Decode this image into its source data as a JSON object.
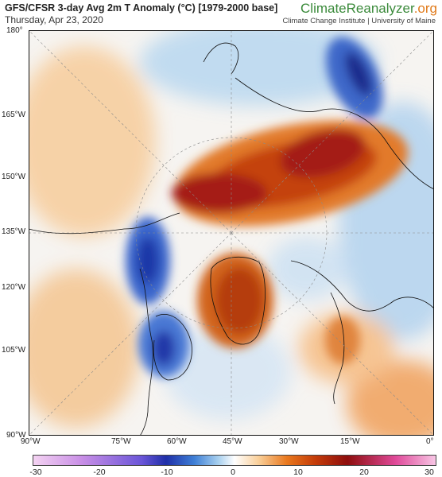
{
  "header": {
    "title": "GFS/CFSR 3-day Avg 2m T Anomaly (°C) [1979-2000 base]",
    "date": "Thursday, Apr 23, 2020",
    "brand_main": "ClimateReanalyzer",
    "brand_tld": ".org",
    "institution": "Climate Change Institute | University of Maine"
  },
  "map": {
    "left_labels": [
      "180°",
      "165°W",
      "150°W",
      "135°W",
      "120°W",
      "105°W",
      "90°W"
    ],
    "bottom_labels": [
      "90°W",
      "75°W",
      "60°W",
      "45°W",
      "30°W",
      "15°W",
      "0°"
    ]
  },
  "colorbar": {
    "ticks": [
      "-30",
      "-20",
      "-10",
      "0",
      "10",
      "20",
      "30"
    ],
    "colors": [
      "#f4d3f2",
      "#c98fe6",
      "#6a55d8",
      "#1f2fa8",
      "#3e7fd6",
      "#a8d0ef",
      "#ffffff",
      "#f9cf99",
      "#e9781e",
      "#c43c09",
      "#8e0d0d",
      "#e04a9a",
      "#f8c7e6"
    ]
  }
}
